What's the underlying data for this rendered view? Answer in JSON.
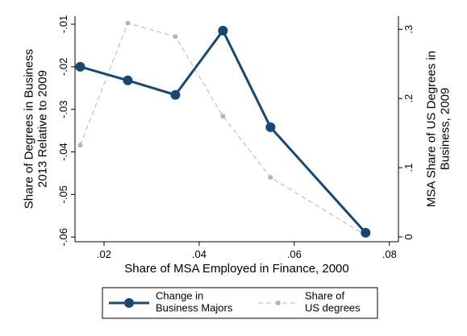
{
  "chart_data": {
    "type": "line",
    "xlabel": "Share of MSA Employed in Finance, 2000",
    "ylabel": "Share of Degrees in Business\n2013 Relative to 2009",
    "y2label": "MSA Share of US Degrees in\nBusiness, 2009",
    "x": [
      0.015,
      0.025,
      0.035,
      0.045,
      0.055,
      0.075
    ],
    "series": [
      {
        "name": "Change in\nBusiness Majors",
        "color": "#1a476f",
        "values": [
          -0.02,
          -0.0232,
          -0.0266,
          -0.0115,
          -0.0342,
          -0.059
        ]
      },
      {
        "name": "Share of\nUS degrees",
        "color": "#b5b5b5",
        "axis": "y2",
        "dashed": true,
        "values": [
          0.1326,
          0.309,
          0.2895,
          0.1744,
          0.086,
          0.0023
        ]
      }
    ],
    "xlim": [
      0.0139,
      0.0819
    ],
    "xticks": [
      {
        "value": 0.02,
        "label": ".02"
      },
      {
        "value": 0.04,
        "label": ".04"
      },
      {
        "value": 0.06,
        "label": ".06"
      },
      {
        "value": 0.08,
        "label": ".08"
      }
    ],
    "ylim": [
      -0.0611,
      -0.0081
    ],
    "yticks": [
      {
        "value": -0.06,
        "label": "-.06"
      },
      {
        "value": -0.05,
        "label": "-.05"
      },
      {
        "value": -0.04,
        "label": "-.04"
      },
      {
        "value": -0.03,
        "label": "-.03"
      },
      {
        "value": -0.02,
        "label": "-.02"
      },
      {
        "value": -0.01,
        "label": "-.01"
      }
    ],
    "y2lim": [
      -0.007,
      0.319
    ],
    "y2ticks": [
      0,
      {
        "value": 0.1,
        "label": ".1"
      },
      {
        "value": 0.2,
        "label": ".2"
      },
      {
        "value": 0.3,
        "label": ".3"
      }
    ],
    "grid": false,
    "legend": "bottom"
  }
}
